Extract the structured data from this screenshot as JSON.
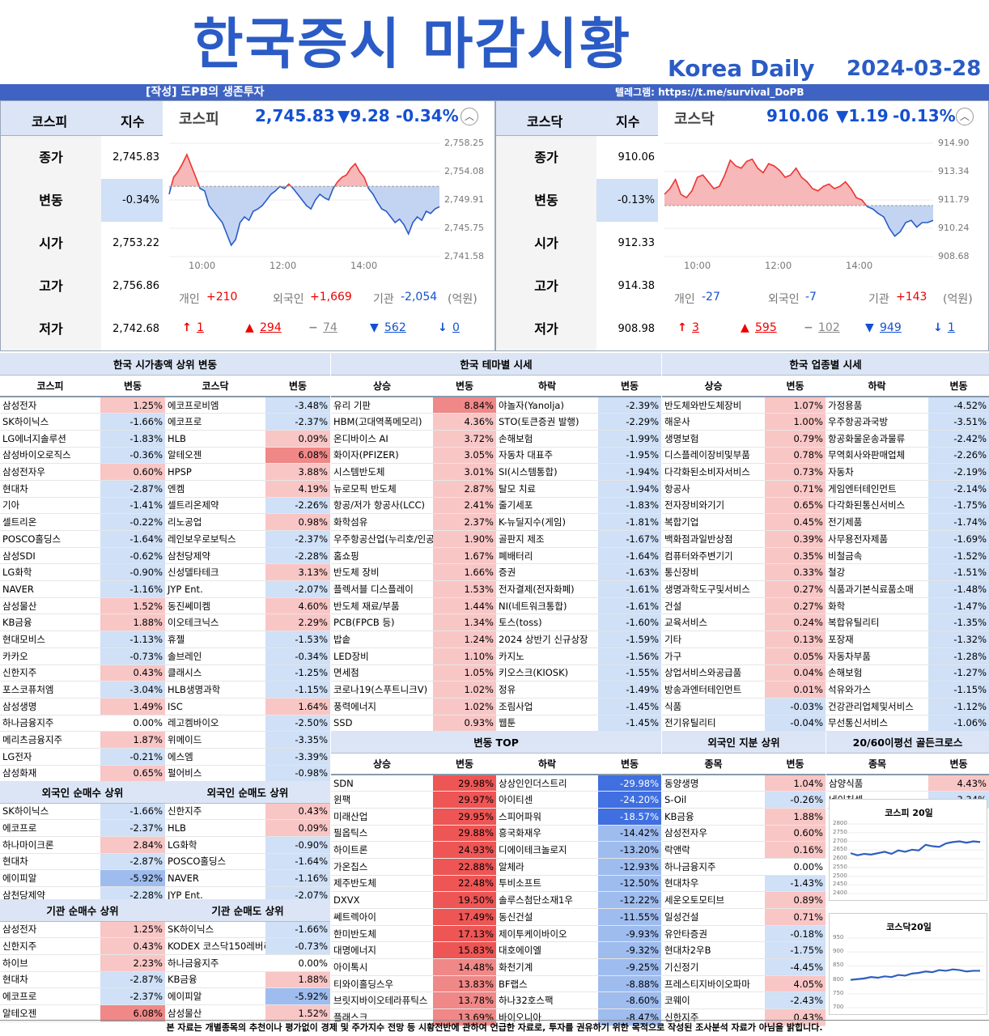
{
  "header": {
    "title": "한국증시 마감시황",
    "brand": "Korea Daily",
    "date": "2024-03-28"
  },
  "banner": {
    "author": "[작성] 도PB의 생존투자",
    "telegram": "텔레그램: https://t.me/survival_DoPB"
  },
  "kospi": {
    "name": "코스피",
    "idx_header": "지수",
    "rows": [
      {
        "label": "종가",
        "value": "2,745.83"
      },
      {
        "label": "변동",
        "value": "-0.34%"
      },
      {
        "label": "시가",
        "value": "2,753.22"
      },
      {
        "label": "고가",
        "value": "2,756.86"
      },
      {
        "label": "저가",
        "value": "2,742.68"
      }
    ],
    "chart_name": "코스피",
    "price": "2,745.83",
    "change": "▼9.28",
    "pct": "-0.34%",
    "yticks": [
      "2,758.25",
      "2,754.08",
      "2,749.91",
      "2,745.75",
      "2,741.58"
    ],
    "xticks": [
      "10:00",
      "12:00",
      "14:00"
    ],
    "flows": {
      "indiv_label": "개인",
      "indiv": "+210",
      "foreign_label": "외국인",
      "foreign": "+1,669",
      "inst_label": "기관",
      "inst": "-2,054",
      "unit": "(억원)"
    },
    "breadth": {
      "upper": "1",
      "up": "294",
      "flat": "74",
      "down": "562",
      "lower": "0"
    }
  },
  "kosdaq": {
    "name": "코스닥",
    "idx_header": "지수",
    "rows": [
      {
        "label": "종가",
        "value": "910.06"
      },
      {
        "label": "변동",
        "value": "-0.13%"
      },
      {
        "label": "시가",
        "value": "912.33"
      },
      {
        "label": "고가",
        "value": "914.38"
      },
      {
        "label": "저가",
        "value": "908.98"
      }
    ],
    "chart_name": "코스닥",
    "price": "910.06",
    "change": "▼1.19",
    "pct": "-0.13%",
    "yticks": [
      "914.90",
      "913.34",
      "911.79",
      "910.24",
      "908.68"
    ],
    "xticks": [
      "10:00",
      "12:00",
      "14:00"
    ],
    "flows": {
      "indiv_label": "개인",
      "indiv": "-27",
      "foreign_label": "외국인",
      "foreign": "-7",
      "inst_label": "기관",
      "inst": "+143",
      "unit": "(억원)"
    },
    "breadth": {
      "upper": "3",
      "up": "595",
      "flat": "102",
      "down": "949",
      "lower": "1"
    }
  },
  "market_cap": {
    "title": "한국 시가총액 상위 변동",
    "headers": [
      "코스피",
      "변동",
      "코스닥",
      "변동"
    ],
    "rows": [
      [
        "삼성전자",
        "1.25%",
        "에코프로비엠",
        "-3.48%"
      ],
      [
        "SK하이닉스",
        "-1.66%",
        "에코프로",
        "-2.37%"
      ],
      [
        "LG에너지솔루션",
        "-1.83%",
        "HLB",
        "0.09%"
      ],
      [
        "삼성바이오로직스",
        "-0.36%",
        "알테오젠",
        "6.08%"
      ],
      [
        "삼성전자우",
        "0.60%",
        "HPSP",
        "3.88%"
      ],
      [
        "현대차",
        "-2.87%",
        "엔켐",
        "4.19%"
      ],
      [
        "기아",
        "-1.41%",
        "셀트리온제약",
        "-2.26%"
      ],
      [
        "셀트리온",
        "-0.22%",
        "리노공업",
        "0.98%"
      ],
      [
        "POSCO홀딩스",
        "-1.64%",
        "레인보우로보틱스",
        "-2.37%"
      ],
      [
        "삼성SDI",
        "-0.62%",
        "삼천당제약",
        "-2.28%"
      ],
      [
        "LG화학",
        "-0.90%",
        "신성델타테크",
        "3.13%"
      ],
      [
        "NAVER",
        "-1.16%",
        "JYP Ent.",
        "-2.07%"
      ],
      [
        "삼성물산",
        "1.52%",
        "동진쎄미켐",
        "4.60%"
      ],
      [
        "KB금융",
        "1.88%",
        "이오테크닉스",
        "2.29%"
      ],
      [
        "현대모비스",
        "-1.13%",
        "휴젤",
        "-1.53%"
      ],
      [
        "카카오",
        "-0.73%",
        "솔브레인",
        "-0.34%"
      ],
      [
        "신한지주",
        "0.43%",
        "클래시스",
        "-1.25%"
      ],
      [
        "포스코퓨처엠",
        "-3.04%",
        "HLB생명과학",
        "-1.15%"
      ],
      [
        "삼성생명",
        "1.49%",
        "ISC",
        "1.64%"
      ],
      [
        "하나금융지주",
        "0.00%",
        "레고켐바이오",
        "-2.50%"
      ],
      [
        "메리츠금융지주",
        "1.87%",
        "위메이드",
        "-3.35%"
      ],
      [
        "LG전자",
        "-0.21%",
        "에스엠",
        "-3.39%"
      ],
      [
        "삼성화재",
        "0.65%",
        "펄어비스",
        "-0.98%"
      ]
    ]
  },
  "foreign_flow": {
    "buy_title": "외국인 순매수 상위",
    "sell_title": "외국인 순매도 상위",
    "rows": [
      [
        "SK하이닉스",
        "-1.66%",
        "신한지주",
        "0.43%"
      ],
      [
        "에코프로",
        "-2.37%",
        "HLB",
        "0.09%"
      ],
      [
        "하나마이크론",
        "2.84%",
        "LG화학",
        "-0.90%"
      ],
      [
        "현대차",
        "-2.87%",
        "POSCO홀딩스",
        "-1.64%"
      ],
      [
        "에이피알",
        "-5.92%",
        "NAVER",
        "-1.16%"
      ],
      [
        "삼천당제약",
        "-2.28%",
        "JYP Ent.",
        "-2.07%"
      ]
    ]
  },
  "inst_flow": {
    "buy_title": "기관 순매수 상위",
    "sell_title": "기관 순매도 상위",
    "rows": [
      [
        "삼성전자",
        "1.25%",
        "SK하이닉스",
        "-1.66%"
      ],
      [
        "신한지주",
        "0.43%",
        "KODEX 코스닥150레버리",
        "-0.73%"
      ],
      [
        "하이브",
        "2.23%",
        "하나금융지주",
        "0.00%"
      ],
      [
        "현대차",
        "-2.87%",
        "KB금융",
        "1.88%"
      ],
      [
        "에코프로",
        "-2.37%",
        "에이피알",
        "-5.92%"
      ],
      [
        "알테오젠",
        "6.08%",
        "삼성물산",
        "1.52%"
      ]
    ]
  },
  "theme": {
    "title": "한국 테마별 시세",
    "headers": [
      "상승",
      "변동",
      "하락",
      "변동"
    ],
    "rows": [
      [
        "유리 기판",
        "8.84%",
        "야놀자(Yanolja)",
        "-2.39%"
      ],
      [
        "HBM(고대역폭메모리)",
        "4.36%",
        "STO(토큰증권 발행)",
        "-2.29%"
      ],
      [
        "온디바이스 AI",
        "3.72%",
        "손해보험",
        "-1.99%"
      ],
      [
        "화이자(PFIZER)",
        "3.05%",
        "자동차 대표주",
        "-1.95%"
      ],
      [
        "시스템반도체",
        "3.01%",
        "SI(시스템통합)",
        "-1.94%"
      ],
      [
        "뉴로모픽 반도체",
        "2.87%",
        "탈모 치료",
        "-1.94%"
      ],
      [
        "항공/저가 항공사(LCC)",
        "2.41%",
        "줄기세포",
        "-1.83%"
      ],
      [
        "화학섬유",
        "2.37%",
        "K-뉴딜지수(게임)",
        "-1.81%"
      ],
      [
        "우주항공산업(누리호/인공",
        "1.90%",
        "골판지 제조",
        "-1.67%"
      ],
      [
        "홈쇼핑",
        "1.67%",
        "폐배터리",
        "-1.64%"
      ],
      [
        "반도체 장비",
        "1.66%",
        "증권",
        "-1.63%"
      ],
      [
        "플렉서블 디스플레이",
        "1.53%",
        "전자결제(전자화폐)",
        "-1.61%"
      ],
      [
        "반도체 재료/부품",
        "1.44%",
        "NI(네트워크통합)",
        "-1.61%"
      ],
      [
        "PCB(FPCB 등)",
        "1.34%",
        "토스(toss)",
        "-1.60%"
      ],
      [
        "밥솥",
        "1.24%",
        "2024 상반기 신규상장",
        "-1.59%"
      ],
      [
        "LED장비",
        "1.10%",
        "카지노",
        "-1.56%"
      ],
      [
        "면세점",
        "1.05%",
        "키오스크(KIOSK)",
        "-1.55%"
      ],
      [
        "코로나19(스푸트니크V)",
        "1.02%",
        "정유",
        "-1.49%"
      ],
      [
        "풍력에너지",
        "1.02%",
        "조림사업",
        "-1.45%"
      ],
      [
        "SSD",
        "0.93%",
        "웹툰",
        "-1.45%"
      ]
    ]
  },
  "top_movers": {
    "title": "변동 TOP",
    "headers": [
      "상승",
      "변동",
      "하락",
      "변동"
    ],
    "rows": [
      [
        "SDN",
        "29.98%",
        "상상인인더스트리",
        "-29.98%"
      ],
      [
        "윈팩",
        "29.97%",
        "아이티센",
        "-24.20%"
      ],
      [
        "미래산업",
        "29.95%",
        "스피어파워",
        "-18.57%"
      ],
      [
        "필옵틱스",
        "29.88%",
        "흥국화재우",
        "-14.42%"
      ],
      [
        "하이트론",
        "24.93%",
        "디에이테크놀로지",
        "-13.20%"
      ],
      [
        "가온칩스",
        "22.88%",
        "알체라",
        "-12.93%"
      ],
      [
        "제주반도체",
        "22.48%",
        "투비소프트",
        "-12.50%"
      ],
      [
        "DXVX",
        "19.50%",
        "솔루스첨단소재1우",
        "-12.22%"
      ],
      [
        "쎄트렉아이",
        "17.49%",
        "동신건설",
        "-11.55%"
      ],
      [
        "한미반도체",
        "17.13%",
        "제이투케이바이오",
        "-9.93%"
      ],
      [
        "대명에너지",
        "15.83%",
        "대호에이엘",
        "-9.32%"
      ],
      [
        "아이톡시",
        "14.48%",
        "화천기계",
        "-9.25%"
      ],
      [
        "티와이홀딩스우",
        "13.83%",
        "BF랩스",
        "-8.88%"
      ],
      [
        "브릿지바이오테라퓨틱스",
        "13.78%",
        "하나32호스팩",
        "-8.60%"
      ],
      [
        "플래스크",
        "13.69%",
        "바이오니아",
        "-8.47%"
      ]
    ]
  },
  "sector": {
    "title": "한국 업종별 시세",
    "headers": [
      "상승",
      "변동",
      "하락",
      "변동"
    ],
    "rows": [
      [
        "반도체와반도체장비",
        "1.07%",
        "가정용품",
        "-4.52%"
      ],
      [
        "해운사",
        "1.00%",
        "우주항공과국방",
        "-3.51%"
      ],
      [
        "생명보험",
        "0.79%",
        "항공화물운송과물류",
        "-2.42%"
      ],
      [
        "디스플레이장비및부품",
        "0.78%",
        "무역회사와판매업체",
        "-2.26%"
      ],
      [
        "다각화된소비자서비스",
        "0.73%",
        "자동차",
        "-2.19%"
      ],
      [
        "항공사",
        "0.71%",
        "게임엔터테인먼트",
        "-2.14%"
      ],
      [
        "전자장비와기기",
        "0.65%",
        "다각화된통신서비스",
        "-1.75%"
      ],
      [
        "복합기업",
        "0.45%",
        "전기제품",
        "-1.74%"
      ],
      [
        "백화점과일반상점",
        "0.39%",
        "사무용전자제품",
        "-1.69%"
      ],
      [
        "컴퓨터와주변기기",
        "0.35%",
        "비철금속",
        "-1.52%"
      ],
      [
        "통신장비",
        "0.33%",
        "철강",
        "-1.51%"
      ],
      [
        "생명과학도구및서비스",
        "0.27%",
        "식품과기본식료품소매",
        "-1.48%"
      ],
      [
        "건설",
        "0.27%",
        "화학",
        "-1.47%"
      ],
      [
        "교육서비스",
        "0.24%",
        "복합유틸리티",
        "-1.35%"
      ],
      [
        "기타",
        "0.13%",
        "포장재",
        "-1.32%"
      ],
      [
        "가구",
        "0.05%",
        "자동차부품",
        "-1.28%"
      ],
      [
        "상업서비스와공급품",
        "0.04%",
        "손해보험",
        "-1.27%"
      ],
      [
        "방송과엔터테인먼트",
        "0.01%",
        "석유와가스",
        "-1.15%"
      ],
      [
        "식품",
        "-0.03%",
        "건강관리업체및서비스",
        "-1.12%"
      ],
      [
        "전기유틸리티",
        "-0.04%",
        "무선통신서비스",
        "-1.06%"
      ]
    ]
  },
  "foreign_share": {
    "title": "외국인 지분 상위",
    "headers": [
      "종목",
      "변동"
    ],
    "rows": [
      [
        "동양생명",
        "1.04%"
      ],
      [
        "S-Oil",
        "-0.26%"
      ],
      [
        "KB금융",
        "1.88%"
      ],
      [
        "삼성전자우",
        "0.60%"
      ],
      [
        "락앤락",
        "0.16%"
      ],
      [
        "하나금융지주",
        "0.00%"
      ],
      [
        "현대차우",
        "-1.43%"
      ],
      [
        "세운오토모티브",
        "0.89%"
      ],
      [
        "일성건설",
        "0.71%"
      ],
      [
        "유안타증권",
        "-0.18%"
      ],
      [
        "현대차2우B",
        "-1.75%"
      ],
      [
        "기신정기",
        "-4.45%"
      ],
      [
        "프레스티지바이오파마",
        "4.05%"
      ],
      [
        "코웨이",
        "-2.43%"
      ],
      [
        "신한지주",
        "0.43%"
      ]
    ]
  },
  "golden_cross": {
    "title": "20/60이평선 골든크로스",
    "headers": [
      "종목",
      "변동"
    ],
    "rows": [
      [
        "삼양식품",
        "4.43%"
      ],
      [
        "네이처셀",
        "-3.34%"
      ]
    ]
  },
  "mini_charts": [
    {
      "title": "코스피 20일",
      "yticks": [
        "2800",
        "2750",
        "2700",
        "2650",
        "2600",
        "2550",
        "2500",
        "2450",
        "2400"
      ]
    },
    {
      "title": "코스닥20일",
      "yticks": [
        "950",
        "900",
        "850",
        "800",
        "750",
        "700"
      ]
    }
  ],
  "footer": "본 자료는 개별종목의 추천이나 평가없이 경제 및 주가지수 전망 등 시황전반에 관하여 언급한 자료로, 투자를 권유하기 위한 목적으로 작성된 조사분석 자료가 아님을 밝힙니다.",
  "colors": {
    "accent": "#2a5bc6",
    "up": "#e00000",
    "down": "#1450d0"
  }
}
